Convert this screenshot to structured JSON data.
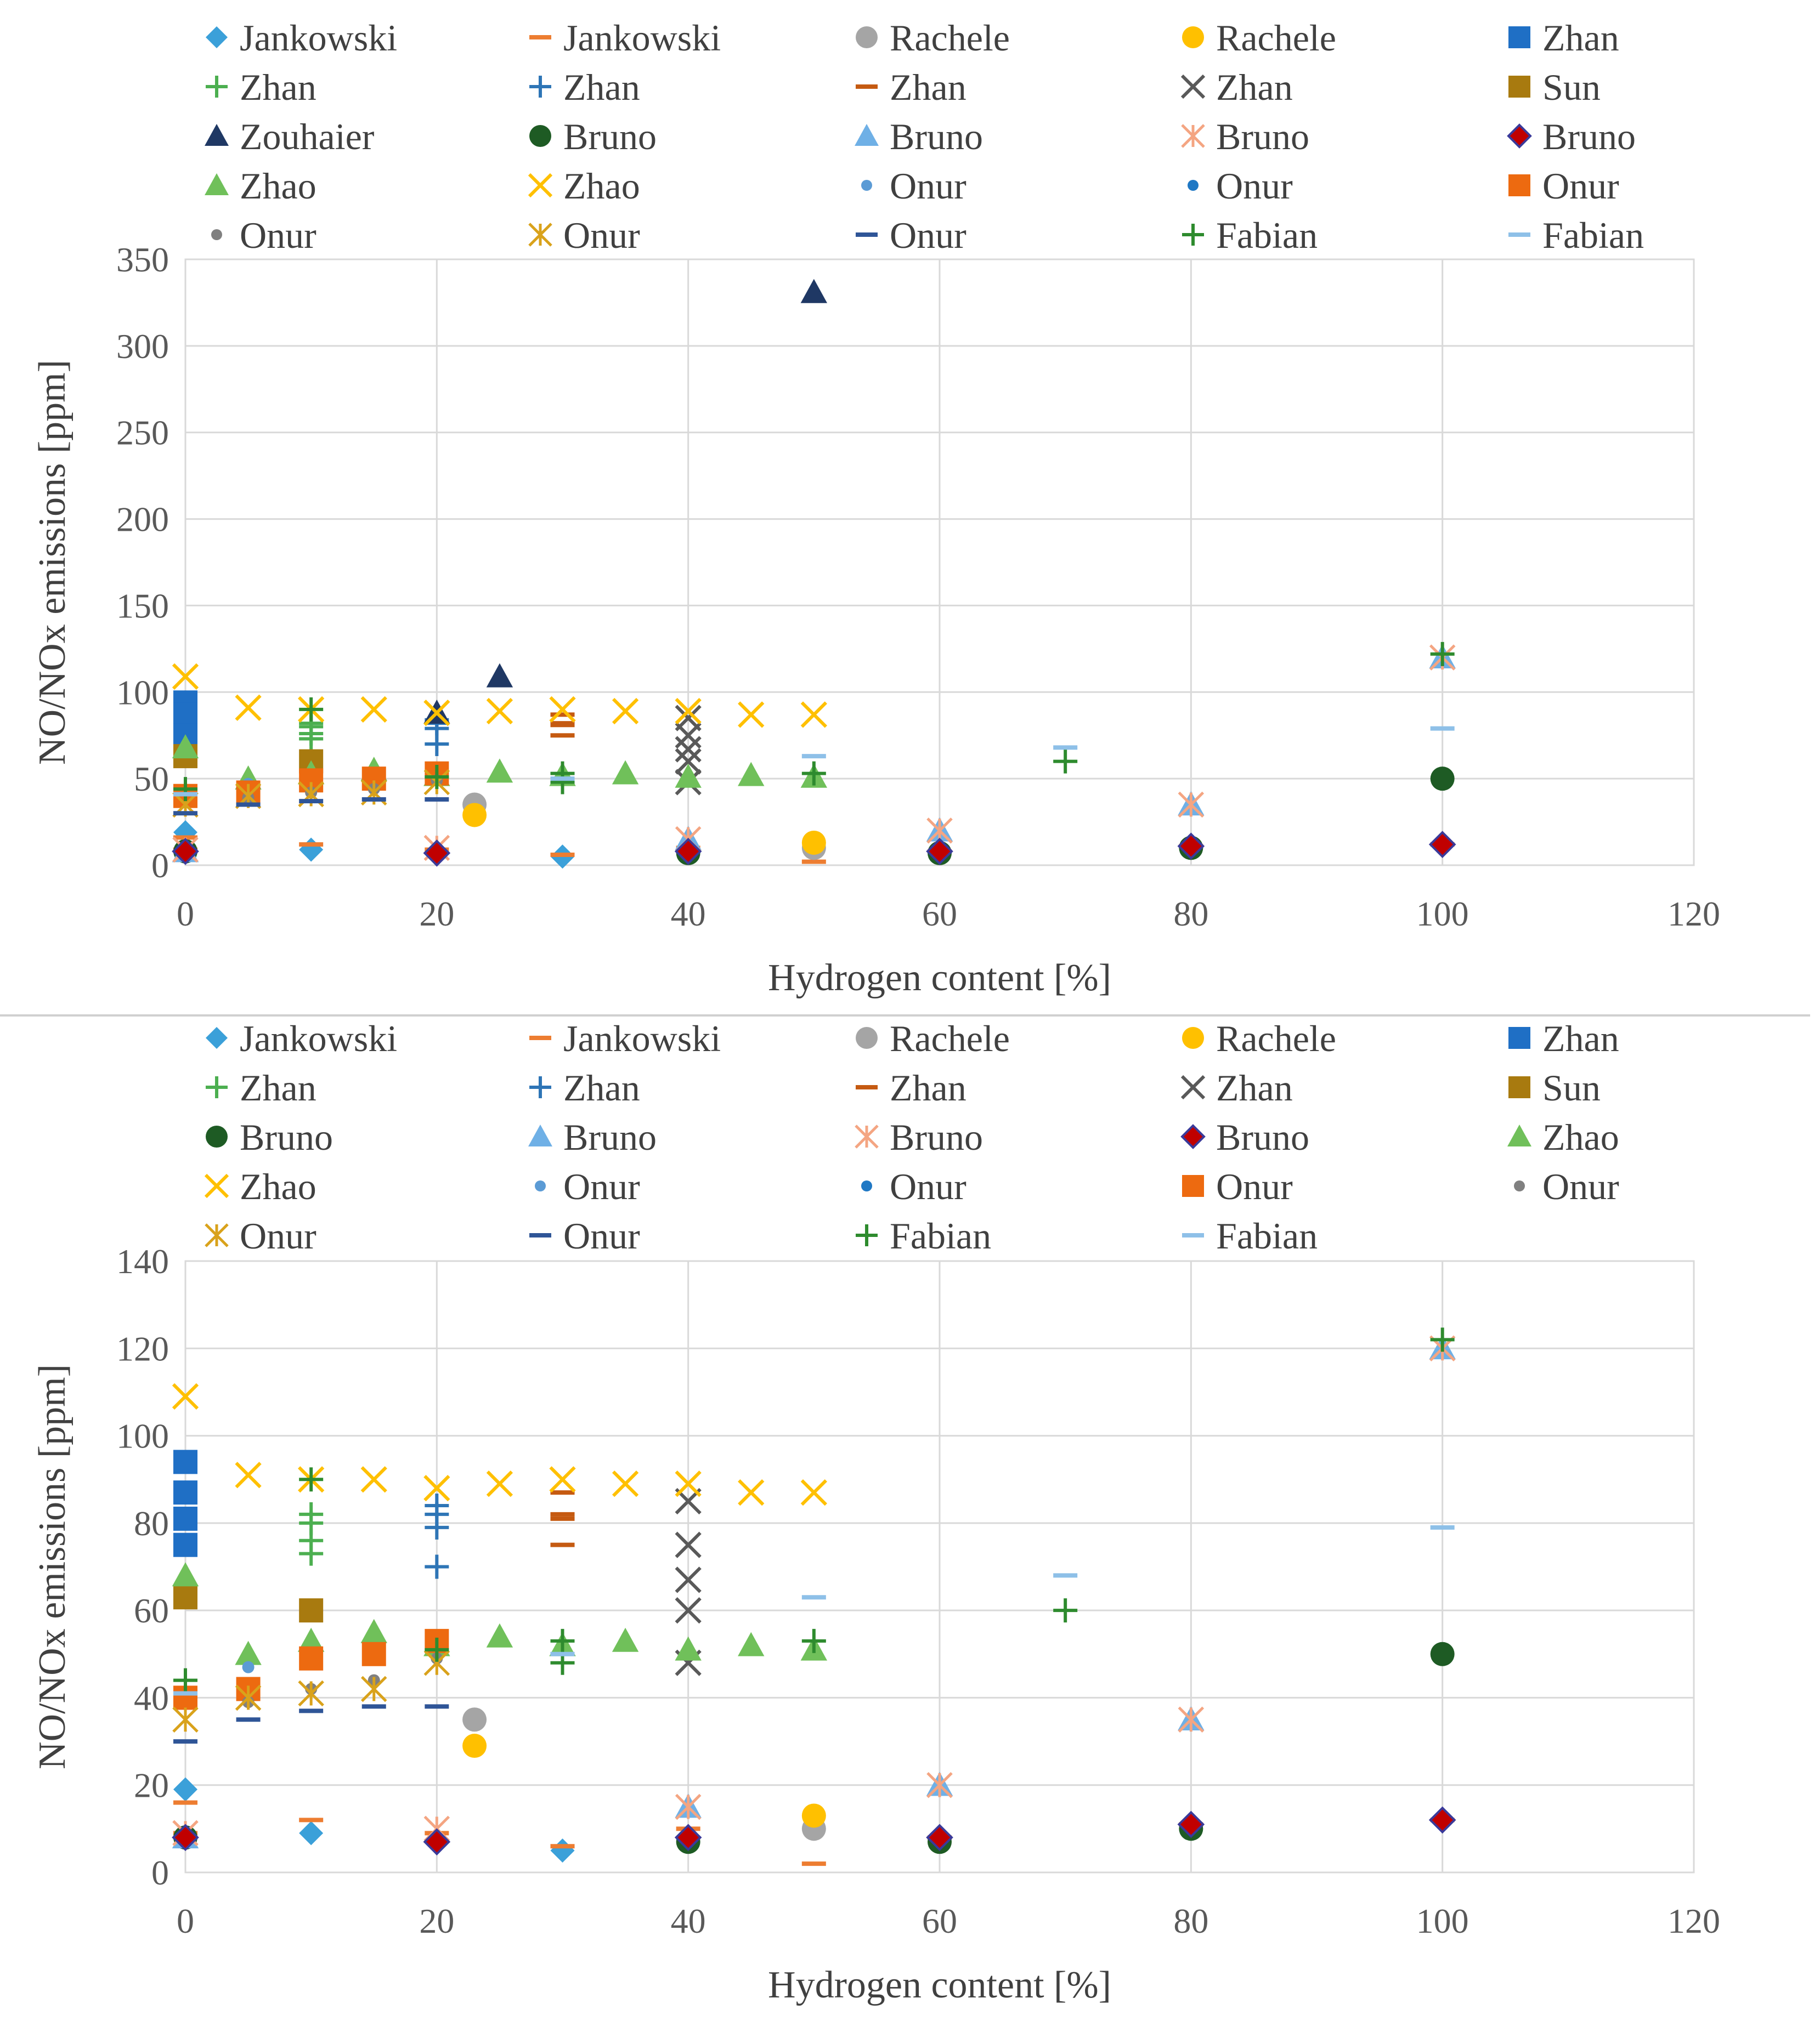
{
  "styles": {
    "jank_d": {
      "shape": "diamond",
      "color": "#3ba0d9"
    },
    "jank_s": {
      "shape": "dash",
      "color": "#ed7d31"
    },
    "rach_g": {
      "shape": "circle",
      "color": "#a5a5a5"
    },
    "rach_y": {
      "shape": "circle",
      "color": "#ffc000"
    },
    "zhan_sq": {
      "shape": "square",
      "color": "#1f6fc5"
    },
    "zhan_pg": {
      "shape": "plus",
      "color": "#4caf50"
    },
    "zhan_pb": {
      "shape": "plus",
      "color": "#2e75b6"
    },
    "zhan_dash": {
      "shape": "dash",
      "color": "#c55a11"
    },
    "zhan_x": {
      "shape": "x",
      "color": "#595959"
    },
    "sun_sq": {
      "shape": "square",
      "color": "#a87a0f"
    },
    "zou_tri": {
      "shape": "triangle",
      "color": "#1f3864"
    },
    "bru_c": {
      "shape": "circle",
      "color": "#1e5b24"
    },
    "bru_t": {
      "shape": "triangle",
      "color": "#6fb0e6"
    },
    "bru_ast": {
      "shape": "asterisk",
      "color": "#f4a582"
    },
    "bru_d": {
      "shape": "diamondr",
      "color": "#c00000"
    },
    "zhao_t": {
      "shape": "triangle",
      "color": "#70c05a"
    },
    "zhao_x": {
      "shape": "x",
      "color": "#ffc000"
    },
    "onur_dot1": {
      "shape": "smalldot",
      "color": "#5b9bd5"
    },
    "onur_dot2": {
      "shape": "smalldot",
      "color": "#1f78c4"
    },
    "onur_sq": {
      "shape": "square",
      "color": "#ed6a10"
    },
    "onur_dotg": {
      "shape": "smalldot",
      "color": "#808080"
    },
    "onur_ast": {
      "shape": "asterisk",
      "color": "#d9a21b"
    },
    "onur_dash": {
      "shape": "dash",
      "color": "#2f5597"
    },
    "fab_p": {
      "shape": "plus",
      "color": "#2e8b2e"
    },
    "fab_dash": {
      "shape": "dash",
      "color": "#8ec0e8"
    }
  },
  "series": {
    "jank_d": [
      [
        0,
        19
      ],
      [
        0,
        8
      ],
      [
        10,
        9
      ],
      [
        20,
        7
      ],
      [
        30,
        5
      ],
      [
        40,
        8
      ],
      [
        60,
        7
      ],
      [
        80,
        10
      ],
      [
        100,
        12
      ]
    ],
    "jank_s": [
      [
        0,
        16
      ],
      [
        0,
        9
      ],
      [
        10,
        12
      ],
      [
        20,
        9
      ],
      [
        30,
        6
      ],
      [
        40,
        10
      ],
      [
        50,
        2
      ],
      [
        60,
        8
      ],
      [
        80,
        11
      ],
      [
        100,
        12
      ]
    ],
    "rach_g": [
      [
        23,
        35
      ],
      [
        50,
        10
      ]
    ],
    "rach_y": [
      [
        23,
        29
      ],
      [
        50,
        13
      ]
    ],
    "zhan_sq": [
      [
        0,
        94
      ],
      [
        0,
        87
      ],
      [
        0,
        81
      ],
      [
        0,
        75
      ]
    ],
    "zhan_pg": [
      [
        10,
        82
      ],
      [
        10,
        80
      ],
      [
        10,
        76
      ],
      [
        10,
        73
      ]
    ],
    "zhan_pb": [
      [
        20,
        84
      ],
      [
        20,
        82
      ],
      [
        20,
        79
      ],
      [
        20,
        70
      ]
    ],
    "zhan_dash": [
      [
        30,
        87
      ],
      [
        30,
        82
      ],
      [
        30,
        81
      ],
      [
        30,
        75
      ]
    ],
    "zhan_x": [
      [
        40,
        85
      ],
      [
        40,
        75
      ],
      [
        40,
        67
      ],
      [
        40,
        60
      ],
      [
        40,
        48
      ]
    ],
    "sun_sq": [
      [
        0,
        63
      ],
      [
        10,
        60
      ]
    ],
    "zou_tri": [
      [
        20,
        88
      ],
      [
        25,
        109
      ],
      [
        50,
        331
      ]
    ],
    "bru_c": [
      [
        0,
        8
      ],
      [
        40,
        7
      ],
      [
        60,
        7
      ],
      [
        80,
        10
      ],
      [
        100,
        50
      ]
    ],
    "bru_t": [
      [
        0,
        8
      ],
      [
        40,
        15
      ],
      [
        60,
        20
      ],
      [
        80,
        35
      ],
      [
        100,
        120
      ]
    ],
    "bru_ast": [
      [
        0,
        9
      ],
      [
        20,
        10
      ],
      [
        40,
        15
      ],
      [
        60,
        20
      ],
      [
        80,
        35
      ],
      [
        100,
        120
      ]
    ],
    "bru_d": [
      [
        0,
        8
      ],
      [
        20,
        7
      ],
      [
        40,
        8
      ],
      [
        60,
        8
      ],
      [
        80,
        11
      ],
      [
        100,
        12
      ]
    ],
    "zhao_t": [
      [
        0,
        68
      ],
      [
        5,
        50
      ],
      [
        10,
        53
      ],
      [
        15,
        55
      ],
      [
        20,
        52
      ],
      [
        25,
        54
      ],
      [
        30,
        52
      ],
      [
        35,
        53
      ],
      [
        40,
        51
      ],
      [
        45,
        52
      ],
      [
        50,
        51
      ]
    ],
    "zhao_x": [
      [
        0,
        109
      ],
      [
        5,
        91
      ],
      [
        10,
        90
      ],
      [
        15,
        90
      ],
      [
        20,
        88
      ],
      [
        25,
        89
      ],
      [
        30,
        90
      ],
      [
        35,
        89
      ],
      [
        40,
        89
      ],
      [
        45,
        87
      ],
      [
        50,
        87
      ]
    ],
    "onur_dot1": [
      [
        5,
        47
      ]
    ],
    "onur_dot2": [
      [
        0,
        40
      ]
    ],
    "onur_sq": [
      [
        0,
        40
      ],
      [
        5,
        42
      ],
      [
        10,
        49
      ],
      [
        15,
        50
      ],
      [
        20,
        53
      ]
    ],
    "onur_dotg": [
      [
        5,
        39
      ],
      [
        10,
        42
      ],
      [
        15,
        44
      ],
      [
        20,
        49
      ]
    ],
    "onur_ast": [
      [
        0,
        35
      ],
      [
        5,
        40
      ],
      [
        10,
        41
      ],
      [
        15,
        42
      ],
      [
        20,
        48
      ]
    ],
    "onur_dash": [
      [
        0,
        30
      ],
      [
        5,
        35
      ],
      [
        10,
        37
      ],
      [
        15,
        38
      ],
      [
        20,
        38
      ]
    ],
    "fab_p": [
      [
        0,
        44
      ],
      [
        10,
        90
      ],
      [
        20,
        51
      ],
      [
        30,
        48
      ],
      [
        30,
        53
      ],
      [
        50,
        53
      ],
      [
        70,
        60
      ],
      [
        100,
        122
      ]
    ],
    "fab_dash": [
      [
        0,
        41
      ],
      [
        30,
        50
      ],
      [
        50,
        63
      ],
      [
        70,
        68
      ],
      [
        100,
        79
      ]
    ]
  },
  "chart_data": [
    {
      "type": "scatter",
      "xlabel": "Hydrogen content [%]",
      "ylabel": "NO/NOx emissions [ppm]",
      "xlim": [
        0,
        120
      ],
      "ylim": [
        0,
        350
      ],
      "xticks": [
        0,
        20,
        40,
        60,
        80,
        100,
        120
      ],
      "yticks": [
        0,
        50,
        100,
        150,
        200,
        250,
        300,
        350
      ],
      "legend_position": "top",
      "legend": [
        {
          "label": "Jankowski",
          "style": "jank_d"
        },
        {
          "label": "Jankowski",
          "style": "jank_s"
        },
        {
          "label": "Rachele",
          "style": "rach_g"
        },
        {
          "label": "Rachele",
          "style": "rach_y"
        },
        {
          "label": "Zhan",
          "style": "zhan_sq"
        },
        {
          "label": "Zhan",
          "style": "zhan_pg"
        },
        {
          "label": "Zhan",
          "style": "zhan_pb"
        },
        {
          "label": "Zhan",
          "style": "zhan_dash"
        },
        {
          "label": "Zhan",
          "style": "zhan_x"
        },
        {
          "label": "Sun",
          "style": "sun_sq"
        },
        {
          "label": "Zouhaier",
          "style": "zou_tri"
        },
        {
          "label": "Bruno",
          "style": "bru_c"
        },
        {
          "label": "Bruno",
          "style": "bru_t"
        },
        {
          "label": "Bruno",
          "style": "bru_ast"
        },
        {
          "label": "Bruno",
          "style": "bru_d"
        },
        {
          "label": "Zhao",
          "style": "zhao_t"
        },
        {
          "label": "Zhao",
          "style": "zhao_x"
        },
        {
          "label": "Onur",
          "style": "onur_dot1"
        },
        {
          "label": "Onur",
          "style": "onur_dot2"
        },
        {
          "label": "Onur",
          "style": "onur_sq"
        },
        {
          "label": "Onur",
          "style": "onur_dotg"
        },
        {
          "label": "Onur",
          "style": "onur_ast"
        },
        {
          "label": "Onur",
          "style": "onur_dash"
        },
        {
          "label": "Fabian",
          "style": "fab_p"
        },
        {
          "label": "Fabian",
          "style": "fab_dash"
        }
      ]
    },
    {
      "type": "scatter",
      "xlabel": "Hydrogen content [%]",
      "ylabel": "NO/NOx emissions [ppm]",
      "xlim": [
        0,
        120
      ],
      "ylim": [
        0,
        140
      ],
      "xticks": [
        0,
        20,
        40,
        60,
        80,
        100,
        120
      ],
      "yticks": [
        0,
        20,
        40,
        60,
        80,
        100,
        120,
        140
      ],
      "legend_position": "top",
      "legend": [
        {
          "label": "Jankowski",
          "style": "jank_d"
        },
        {
          "label": "Jankowski",
          "style": "jank_s"
        },
        {
          "label": "Rachele",
          "style": "rach_g"
        },
        {
          "label": "Rachele",
          "style": "rach_y"
        },
        {
          "label": "Zhan",
          "style": "zhan_sq"
        },
        {
          "label": "Zhan",
          "style": "zhan_pg"
        },
        {
          "label": "Zhan",
          "style": "zhan_pb"
        },
        {
          "label": "Zhan",
          "style": "zhan_dash"
        },
        {
          "label": "Zhan",
          "style": "zhan_x"
        },
        {
          "label": "Sun",
          "style": "sun_sq"
        },
        {
          "label": "Bruno",
          "style": "bru_c"
        },
        {
          "label": "Bruno",
          "style": "bru_t"
        },
        {
          "label": "Bruno",
          "style": "bru_ast"
        },
        {
          "label": "Bruno",
          "style": "bru_d"
        },
        {
          "label": "Zhao",
          "style": "zhao_t"
        },
        {
          "label": "Zhao",
          "style": "zhao_x"
        },
        {
          "label": "Onur",
          "style": "onur_dot1"
        },
        {
          "label": "Onur",
          "style": "onur_dot2"
        },
        {
          "label": "Onur",
          "style": "onur_sq"
        },
        {
          "label": "Onur",
          "style": "onur_dotg"
        },
        {
          "label": "Onur",
          "style": "onur_ast"
        },
        {
          "label": "Onur",
          "style": "onur_dash"
        },
        {
          "label": "Fabian",
          "style": "fab_p"
        },
        {
          "label": "Fabian",
          "style": "fab_dash"
        }
      ]
    }
  ]
}
